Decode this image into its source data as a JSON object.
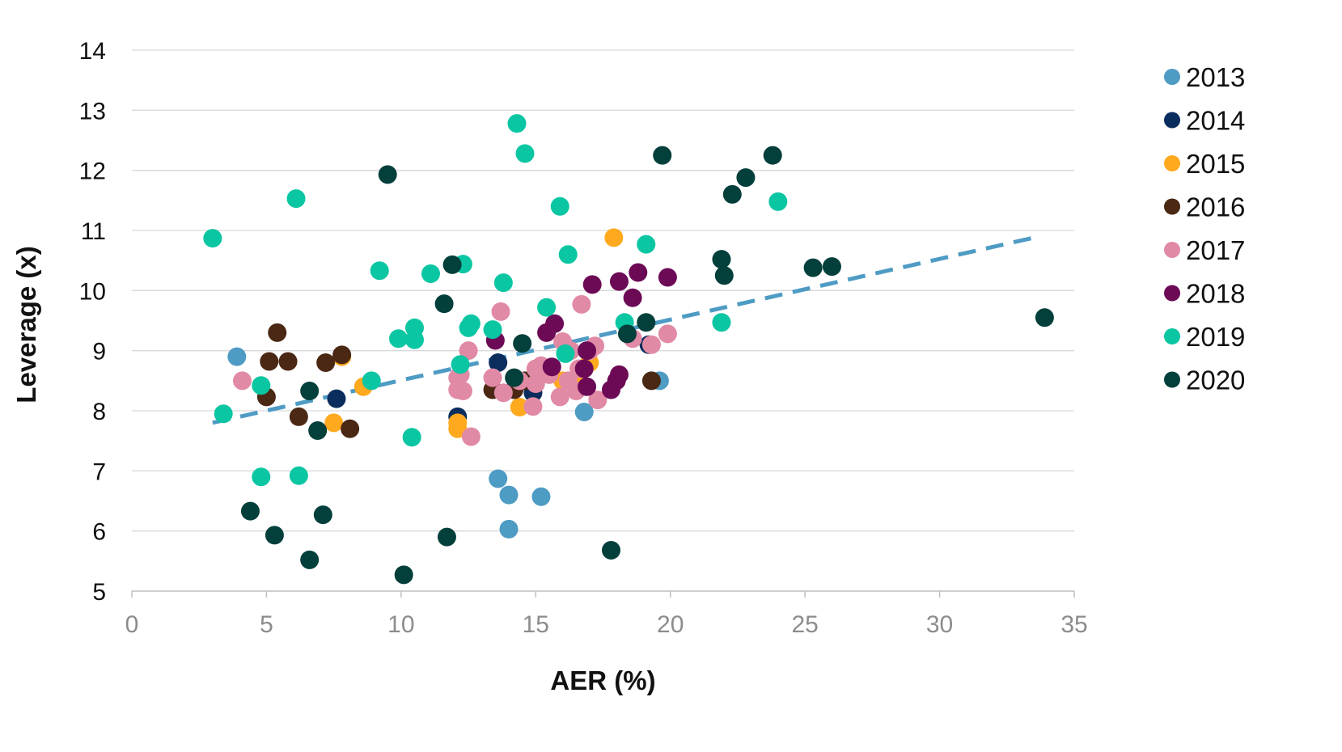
{
  "chart_data": {
    "type": "scatter",
    "title": "",
    "xlabel": "AER (%)",
    "ylabel": "Leverage (x)",
    "xlim": [
      0,
      35
    ],
    "ylim": [
      5,
      14
    ],
    "x_ticks": [
      "0",
      "5",
      "10",
      "15",
      "20",
      "25",
      "30",
      "35"
    ],
    "y_ticks": [
      "5",
      "6",
      "7",
      "8",
      "9",
      "10",
      "11",
      "12",
      "13",
      "14"
    ],
    "grid": "horizontal",
    "legend_position": "right",
    "trendline": {
      "style": "dashed",
      "color": "#4e9bc4",
      "from": [
        3,
        7.8
      ],
      "to": [
        33.7,
        10.9
      ]
    },
    "series": [
      {
        "name": "2013",
        "color": "#4e9bc4",
        "points": [
          [
            3.9,
            8.9
          ],
          [
            13.6,
            6.87
          ],
          [
            14.0,
            6.6
          ],
          [
            14.0,
            6.03
          ],
          [
            15.2,
            6.57
          ],
          [
            16.8,
            7.98
          ],
          [
            19.6,
            8.5
          ]
        ]
      },
      {
        "name": "2014",
        "color": "#0b2d5e",
        "points": [
          [
            7.6,
            8.2
          ],
          [
            12.1,
            7.9
          ],
          [
            13.6,
            8.8
          ],
          [
            14.9,
            8.3
          ],
          [
            19.2,
            9.1
          ]
        ]
      },
      {
        "name": "2015",
        "color": "#ffa91f",
        "points": [
          [
            7.5,
            7.8
          ],
          [
            7.8,
            8.9
          ],
          [
            8.6,
            8.4
          ],
          [
            12.1,
            7.8
          ],
          [
            12.1,
            7.7
          ],
          [
            14.4,
            8.06
          ],
          [
            16.0,
            8.5
          ],
          [
            16.6,
            8.6
          ],
          [
            17.0,
            8.8
          ],
          [
            17.9,
            10.88
          ]
        ]
      },
      {
        "name": "2016",
        "color": "#4a2814",
        "points": [
          [
            5.0,
            8.23
          ],
          [
            5.1,
            8.82
          ],
          [
            5.4,
            9.3
          ],
          [
            5.8,
            8.82
          ],
          [
            6.2,
            7.9
          ],
          [
            7.2,
            8.8
          ],
          [
            7.8,
            8.93
          ],
          [
            8.1,
            7.7
          ],
          [
            13.4,
            8.35
          ],
          [
            14.2,
            8.35
          ],
          [
            14.6,
            8.5
          ],
          [
            19.3,
            8.5
          ]
        ]
      },
      {
        "name": "2017",
        "color": "#e18aa5",
        "points": [
          [
            4.1,
            8.5
          ],
          [
            12.1,
            8.35
          ],
          [
            12.1,
            8.55
          ],
          [
            12.2,
            8.6
          ],
          [
            12.3,
            8.33
          ],
          [
            12.5,
            9.0
          ],
          [
            12.6,
            7.57
          ],
          [
            13.4,
            8.55
          ],
          [
            13.7,
            9.65
          ],
          [
            13.8,
            8.3
          ],
          [
            14.4,
            8.5
          ],
          [
            14.9,
            8.07
          ],
          [
            15.0,
            8.45
          ],
          [
            15.0,
            8.7
          ],
          [
            15.2,
            8.75
          ],
          [
            15.5,
            8.6
          ],
          [
            15.9,
            8.23
          ],
          [
            16.0,
            9.15
          ],
          [
            16.2,
            8.5
          ],
          [
            16.3,
            9.0
          ],
          [
            16.5,
            8.33
          ],
          [
            16.6,
            8.7
          ],
          [
            16.7,
            9.77
          ],
          [
            17.0,
            9.0
          ],
          [
            17.2,
            9.08
          ],
          [
            17.3,
            8.18
          ],
          [
            18.6,
            9.2
          ],
          [
            19.3,
            9.1
          ],
          [
            19.9,
            9.28
          ]
        ]
      },
      {
        "name": "2018",
        "color": "#6c0a56",
        "points": [
          [
            13.5,
            9.17
          ],
          [
            15.4,
            9.3
          ],
          [
            15.6,
            8.73
          ],
          [
            15.7,
            9.45
          ],
          [
            16.8,
            8.7
          ],
          [
            16.9,
            9.0
          ],
          [
            16.9,
            8.4
          ],
          [
            17.1,
            10.1
          ],
          [
            17.8,
            8.35
          ],
          [
            18.0,
            8.5
          ],
          [
            18.1,
            8.6
          ],
          [
            18.1,
            10.15
          ],
          [
            18.6,
            9.88
          ],
          [
            18.8,
            10.3
          ],
          [
            19.9,
            10.22
          ]
        ]
      },
      {
        "name": "2019",
        "color": "#0bc6a3",
        "points": [
          [
            3.0,
            10.87
          ],
          [
            3.4,
            7.95
          ],
          [
            4.8,
            8.42
          ],
          [
            4.8,
            6.9
          ],
          [
            6.1,
            11.53
          ],
          [
            6.2,
            6.92
          ],
          [
            8.9,
            8.5
          ],
          [
            9.2,
            10.33
          ],
          [
            9.9,
            9.2
          ],
          [
            10.4,
            7.56
          ],
          [
            10.5,
            9.38
          ],
          [
            10.5,
            9.18
          ],
          [
            11.1,
            10.28
          ],
          [
            12.2,
            8.77
          ],
          [
            12.3,
            10.44
          ],
          [
            12.5,
            9.38
          ],
          [
            12.6,
            9.45
          ],
          [
            13.4,
            9.35
          ],
          [
            13.8,
            10.13
          ],
          [
            14.3,
            12.78
          ],
          [
            14.6,
            12.28
          ],
          [
            15.4,
            9.72
          ],
          [
            15.9,
            11.4
          ],
          [
            16.1,
            8.95
          ],
          [
            16.2,
            10.6
          ],
          [
            18.3,
            9.47
          ],
          [
            19.1,
            10.77
          ],
          [
            21.9,
            9.47
          ],
          [
            24.0,
            11.48
          ]
        ]
      },
      {
        "name": "2020",
        "color": "#033f3b",
        "points": [
          [
            4.4,
            6.33
          ],
          [
            5.3,
            5.93
          ],
          [
            6.6,
            8.33
          ],
          [
            6.6,
            5.52
          ],
          [
            6.9,
            7.67
          ],
          [
            7.1,
            6.27
          ],
          [
            9.5,
            11.93
          ],
          [
            10.1,
            5.27
          ],
          [
            11.6,
            9.78
          ],
          [
            11.7,
            5.9
          ],
          [
            11.9,
            10.43
          ],
          [
            14.2,
            8.55
          ],
          [
            14.5,
            9.12
          ],
          [
            17.8,
            5.68
          ],
          [
            18.4,
            9.28
          ],
          [
            19.1,
            9.47
          ],
          [
            19.7,
            12.25
          ],
          [
            21.9,
            10.52
          ],
          [
            22.0,
            10.25
          ],
          [
            22.3,
            11.6
          ],
          [
            22.8,
            11.88
          ],
          [
            23.8,
            12.25
          ],
          [
            25.3,
            10.38
          ],
          [
            26.0,
            10.4
          ],
          [
            33.9,
            9.55
          ]
        ]
      }
    ]
  }
}
